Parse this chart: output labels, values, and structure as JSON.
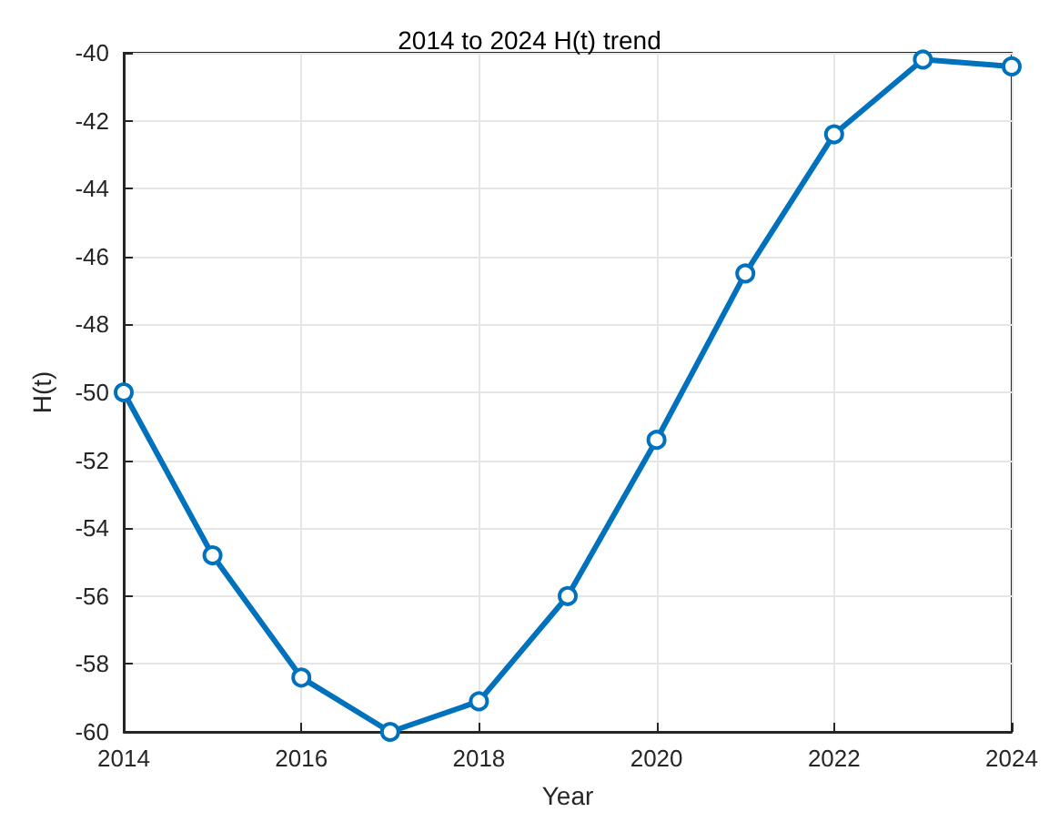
{
  "chart_data": {
    "type": "line",
    "title": "2014 to 2024 H(t) trend",
    "xlabel": "Year",
    "ylabel": "H(t)",
    "x": [
      2014,
      2015,
      2016,
      2017,
      2018,
      2019,
      2020,
      2021,
      2022,
      2023,
      2024
    ],
    "series": [
      {
        "color": "#0072bd",
        "values": [
          -50.0,
          -54.8,
          -58.4,
          -60.0,
          -59.1,
          -56.0,
          -51.4,
          -46.5,
          -42.4,
          -40.2,
          -40.4
        ]
      }
    ],
    "xlim": [
      2014,
      2024
    ],
    "xticks": [
      2014,
      2016,
      2018,
      2020,
      2022,
      2024
    ],
    "ylim": [
      -60,
      -40
    ],
    "yticks": [
      -60,
      -58,
      -56,
      -54,
      -52,
      -50,
      -48,
      -46,
      -44,
      -42,
      -40
    ],
    "grid": true,
    "marker": "circle",
    "line_style": "solid"
  }
}
